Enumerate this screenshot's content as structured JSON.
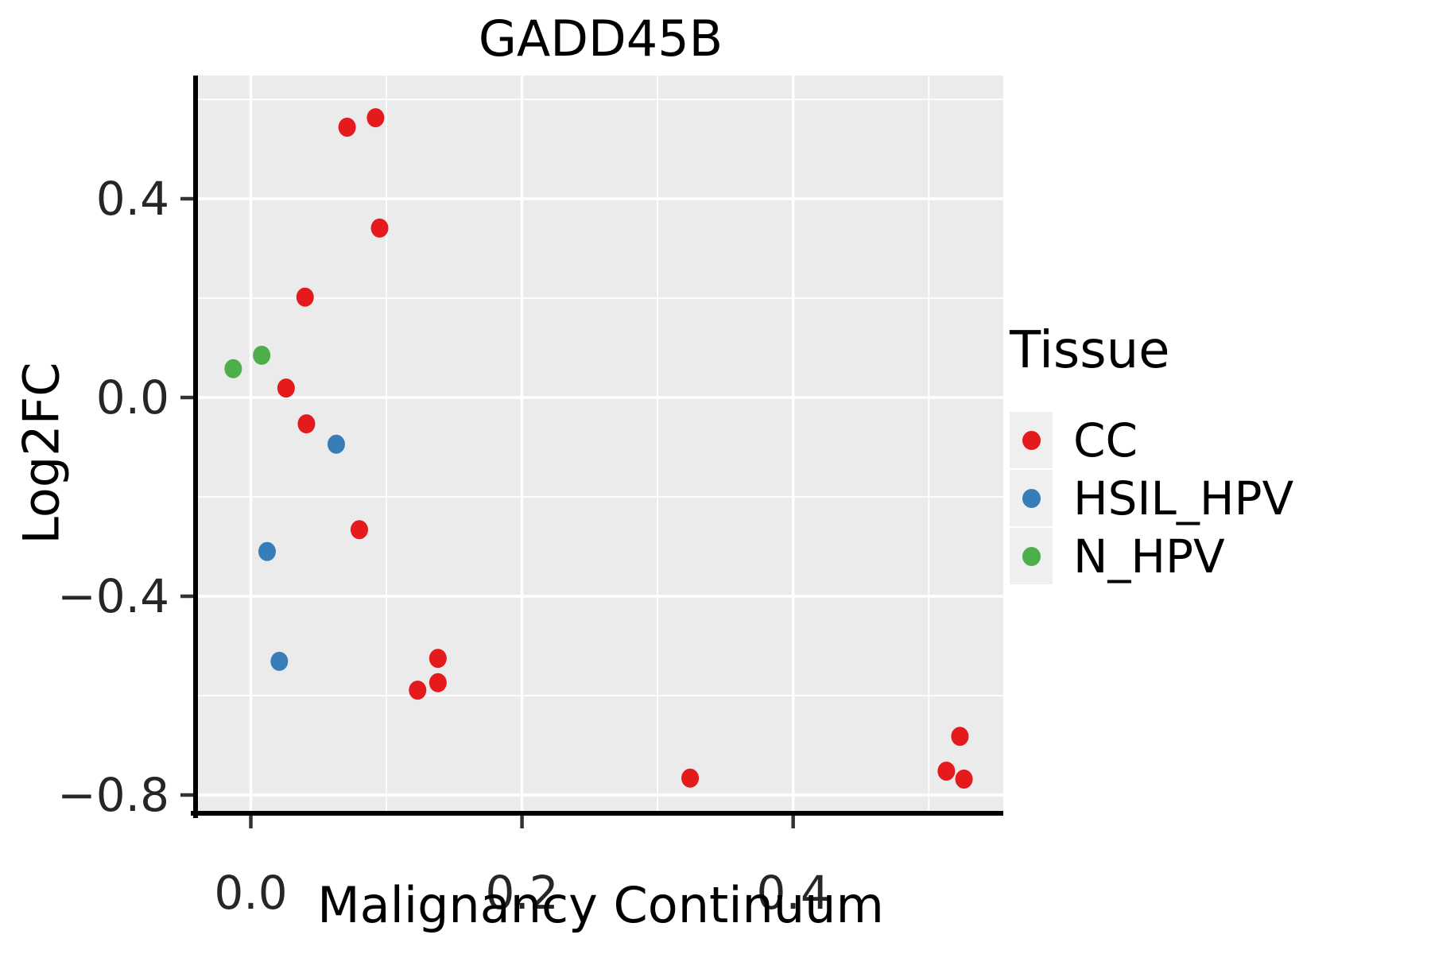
{
  "chart_data": {
    "type": "scatter",
    "title": "GADD45B",
    "xlabel": "Malignancy Continuum",
    "ylabel": "Log2FC",
    "xlim": [
      -0.039,
      0.555
    ],
    "ylim": [
      -0.832,
      0.648
    ],
    "x_major_ticks": [
      0.0,
      0.2,
      0.4
    ],
    "x_tick_labels": [
      "0.0",
      "0.2",
      "0.4"
    ],
    "x_minor_ticks": [
      0.1,
      0.3,
      0.5
    ],
    "y_major_ticks": [
      0.4,
      0.0,
      -0.4,
      -0.8
    ],
    "y_tick_labels": [
      "0.4",
      "0.0",
      "−0.4",
      "−0.8"
    ],
    "y_minor_ticks": [
      0.6,
      0.2,
      -0.2,
      -0.6
    ],
    "grid": true,
    "legend_position": "right",
    "panel_background": "#EBEBEB",
    "grid_color": "#FFFFFF",
    "axis_line_color": "#000000",
    "tick_color": "#333333",
    "tick_label_color": "#262626",
    "point_radius_px": 11,
    "series": [
      {
        "name": "CC",
        "color": "#E41A1C",
        "points": [
          [
            0.071,
            0.544
          ],
          [
            0.092,
            0.563
          ],
          [
            0.095,
            0.341
          ],
          [
            0.04,
            0.202
          ],
          [
            0.026,
            0.019
          ],
          [
            0.041,
            -0.053
          ],
          [
            0.08,
            -0.266
          ],
          [
            0.138,
            -0.525
          ],
          [
            0.138,
            -0.574
          ],
          [
            0.123,
            -0.589
          ],
          [
            0.324,
            -0.766
          ],
          [
            0.523,
            -0.682
          ],
          [
            0.513,
            -0.752
          ],
          [
            0.526,
            -0.768
          ]
        ]
      },
      {
        "name": "HSIL_HPV",
        "color": "#377EB8",
        "points": [
          [
            0.063,
            -0.094
          ],
          [
            0.012,
            -0.31
          ],
          [
            0.021,
            -0.531
          ]
        ]
      },
      {
        "name": "N_HPV",
        "color": "#4DAF4A",
        "points": [
          [
            0.008,
            0.085
          ],
          [
            -0.013,
            0.058
          ]
        ]
      }
    ]
  },
  "legend": {
    "title": "Tissue",
    "key_background": "#EFEFEF",
    "items": [
      {
        "label": "CC",
        "color": "#E41A1C"
      },
      {
        "label": "HSIL_HPV",
        "color": "#377EB8"
      },
      {
        "label": "N_HPV",
        "color": "#4DAF4A"
      }
    ]
  }
}
